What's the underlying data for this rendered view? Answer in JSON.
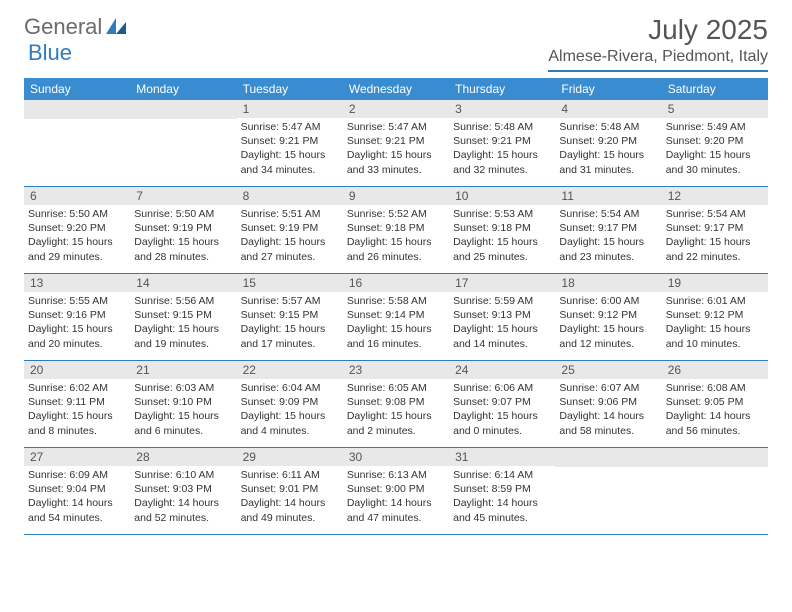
{
  "brand": {
    "name_general": "General",
    "name_blue": "Blue"
  },
  "title": {
    "month": "July 2025",
    "location": "Almese-Rivera, Piedmont, Italy"
  },
  "day_headers": [
    "Sunday",
    "Monday",
    "Tuesday",
    "Wednesday",
    "Thursday",
    "Friday",
    "Saturday"
  ],
  "colors": {
    "header_bg": "#3a8cd0",
    "accent_line": "#2e7cc2",
    "daynum_bg": "#e8e8e8",
    "text": "#333333",
    "title_text": "#555555"
  },
  "weeks": [
    {
      "days": [
        {
          "n": "",
          "sunrise": "",
          "sunset": "",
          "daylight": ""
        },
        {
          "n": "",
          "sunrise": "",
          "sunset": "",
          "daylight": ""
        },
        {
          "n": "1",
          "sunrise": "Sunrise: 5:47 AM",
          "sunset": "Sunset: 9:21 PM",
          "daylight": "Daylight: 15 hours and 34 minutes."
        },
        {
          "n": "2",
          "sunrise": "Sunrise: 5:47 AM",
          "sunset": "Sunset: 9:21 PM",
          "daylight": "Daylight: 15 hours and 33 minutes."
        },
        {
          "n": "3",
          "sunrise": "Sunrise: 5:48 AM",
          "sunset": "Sunset: 9:21 PM",
          "daylight": "Daylight: 15 hours and 32 minutes."
        },
        {
          "n": "4",
          "sunrise": "Sunrise: 5:48 AM",
          "sunset": "Sunset: 9:20 PM",
          "daylight": "Daylight: 15 hours and 31 minutes."
        },
        {
          "n": "5",
          "sunrise": "Sunrise: 5:49 AM",
          "sunset": "Sunset: 9:20 PM",
          "daylight": "Daylight: 15 hours and 30 minutes."
        }
      ]
    },
    {
      "days": [
        {
          "n": "6",
          "sunrise": "Sunrise: 5:50 AM",
          "sunset": "Sunset: 9:20 PM",
          "daylight": "Daylight: 15 hours and 29 minutes."
        },
        {
          "n": "7",
          "sunrise": "Sunrise: 5:50 AM",
          "sunset": "Sunset: 9:19 PM",
          "daylight": "Daylight: 15 hours and 28 minutes."
        },
        {
          "n": "8",
          "sunrise": "Sunrise: 5:51 AM",
          "sunset": "Sunset: 9:19 PM",
          "daylight": "Daylight: 15 hours and 27 minutes."
        },
        {
          "n": "9",
          "sunrise": "Sunrise: 5:52 AM",
          "sunset": "Sunset: 9:18 PM",
          "daylight": "Daylight: 15 hours and 26 minutes."
        },
        {
          "n": "10",
          "sunrise": "Sunrise: 5:53 AM",
          "sunset": "Sunset: 9:18 PM",
          "daylight": "Daylight: 15 hours and 25 minutes."
        },
        {
          "n": "11",
          "sunrise": "Sunrise: 5:54 AM",
          "sunset": "Sunset: 9:17 PM",
          "daylight": "Daylight: 15 hours and 23 minutes."
        },
        {
          "n": "12",
          "sunrise": "Sunrise: 5:54 AM",
          "sunset": "Sunset: 9:17 PM",
          "daylight": "Daylight: 15 hours and 22 minutes."
        }
      ]
    },
    {
      "days": [
        {
          "n": "13",
          "sunrise": "Sunrise: 5:55 AM",
          "sunset": "Sunset: 9:16 PM",
          "daylight": "Daylight: 15 hours and 20 minutes."
        },
        {
          "n": "14",
          "sunrise": "Sunrise: 5:56 AM",
          "sunset": "Sunset: 9:15 PM",
          "daylight": "Daylight: 15 hours and 19 minutes."
        },
        {
          "n": "15",
          "sunrise": "Sunrise: 5:57 AM",
          "sunset": "Sunset: 9:15 PM",
          "daylight": "Daylight: 15 hours and 17 minutes."
        },
        {
          "n": "16",
          "sunrise": "Sunrise: 5:58 AM",
          "sunset": "Sunset: 9:14 PM",
          "daylight": "Daylight: 15 hours and 16 minutes."
        },
        {
          "n": "17",
          "sunrise": "Sunrise: 5:59 AM",
          "sunset": "Sunset: 9:13 PM",
          "daylight": "Daylight: 15 hours and 14 minutes."
        },
        {
          "n": "18",
          "sunrise": "Sunrise: 6:00 AM",
          "sunset": "Sunset: 9:12 PM",
          "daylight": "Daylight: 15 hours and 12 minutes."
        },
        {
          "n": "19",
          "sunrise": "Sunrise: 6:01 AM",
          "sunset": "Sunset: 9:12 PM",
          "daylight": "Daylight: 15 hours and 10 minutes."
        }
      ]
    },
    {
      "days": [
        {
          "n": "20",
          "sunrise": "Sunrise: 6:02 AM",
          "sunset": "Sunset: 9:11 PM",
          "daylight": "Daylight: 15 hours and 8 minutes."
        },
        {
          "n": "21",
          "sunrise": "Sunrise: 6:03 AM",
          "sunset": "Sunset: 9:10 PM",
          "daylight": "Daylight: 15 hours and 6 minutes."
        },
        {
          "n": "22",
          "sunrise": "Sunrise: 6:04 AM",
          "sunset": "Sunset: 9:09 PM",
          "daylight": "Daylight: 15 hours and 4 minutes."
        },
        {
          "n": "23",
          "sunrise": "Sunrise: 6:05 AM",
          "sunset": "Sunset: 9:08 PM",
          "daylight": "Daylight: 15 hours and 2 minutes."
        },
        {
          "n": "24",
          "sunrise": "Sunrise: 6:06 AM",
          "sunset": "Sunset: 9:07 PM",
          "daylight": "Daylight: 15 hours and 0 minutes."
        },
        {
          "n": "25",
          "sunrise": "Sunrise: 6:07 AM",
          "sunset": "Sunset: 9:06 PM",
          "daylight": "Daylight: 14 hours and 58 minutes."
        },
        {
          "n": "26",
          "sunrise": "Sunrise: 6:08 AM",
          "sunset": "Sunset: 9:05 PM",
          "daylight": "Daylight: 14 hours and 56 minutes."
        }
      ]
    },
    {
      "days": [
        {
          "n": "27",
          "sunrise": "Sunrise: 6:09 AM",
          "sunset": "Sunset: 9:04 PM",
          "daylight": "Daylight: 14 hours and 54 minutes."
        },
        {
          "n": "28",
          "sunrise": "Sunrise: 6:10 AM",
          "sunset": "Sunset: 9:03 PM",
          "daylight": "Daylight: 14 hours and 52 minutes."
        },
        {
          "n": "29",
          "sunrise": "Sunrise: 6:11 AM",
          "sunset": "Sunset: 9:01 PM",
          "daylight": "Daylight: 14 hours and 49 minutes."
        },
        {
          "n": "30",
          "sunrise": "Sunrise: 6:13 AM",
          "sunset": "Sunset: 9:00 PM",
          "daylight": "Daylight: 14 hours and 47 minutes."
        },
        {
          "n": "31",
          "sunrise": "Sunrise: 6:14 AM",
          "sunset": "Sunset: 8:59 PM",
          "daylight": "Daylight: 14 hours and 45 minutes."
        },
        {
          "n": "",
          "sunrise": "",
          "sunset": "",
          "daylight": ""
        },
        {
          "n": "",
          "sunrise": "",
          "sunset": "",
          "daylight": ""
        }
      ]
    }
  ]
}
